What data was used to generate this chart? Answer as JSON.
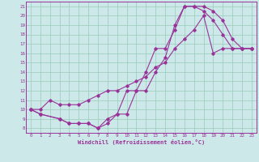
{
  "bg_color": "#cce8e8",
  "line_color": "#993399",
  "grid_color": "#99ccbb",
  "xlabel": "Windchill (Refroidissement éolien,°C)",
  "xlim": [
    -0.5,
    23.5
  ],
  "ylim": [
    7.5,
    21.5
  ],
  "yticks": [
    8,
    9,
    10,
    11,
    12,
    13,
    14,
    15,
    16,
    17,
    18,
    19,
    20,
    21
  ],
  "xticks": [
    0,
    1,
    2,
    3,
    4,
    5,
    6,
    7,
    8,
    9,
    10,
    11,
    12,
    13,
    14,
    15,
    16,
    17,
    18,
    19,
    20,
    21,
    22,
    23
  ],
  "curve1_x": [
    0,
    1,
    3,
    4,
    5,
    6,
    7,
    8,
    9,
    10,
    11,
    12,
    13,
    14,
    15,
    16,
    17,
    18,
    19,
    20,
    21,
    22,
    23
  ],
  "curve1_y": [
    10.0,
    9.5,
    9.0,
    8.5,
    8.5,
    8.5,
    8.0,
    9.0,
    9.5,
    12.0,
    12.0,
    14.0,
    16.5,
    16.5,
    18.5,
    21.0,
    21.0,
    20.5,
    19.5,
    18.0,
    16.5,
    16.5,
    16.5
  ],
  "curve2_x": [
    0,
    1,
    3,
    4,
    5,
    6,
    7,
    8,
    9,
    10,
    11,
    12,
    13,
    14,
    15,
    16,
    17,
    18,
    19,
    20,
    21,
    22,
    23
  ],
  "curve2_y": [
    10.0,
    9.5,
    9.0,
    8.5,
    8.5,
    8.5,
    8.0,
    8.5,
    9.5,
    9.5,
    12.0,
    12.0,
    14.0,
    15.5,
    19.0,
    21.0,
    21.0,
    21.0,
    20.5,
    19.5,
    17.5,
    16.5,
    16.5
  ],
  "curve3_x": [
    0,
    1,
    2,
    3,
    4,
    5,
    6,
    7,
    8,
    9,
    10,
    11,
    12,
    13,
    14,
    15,
    16,
    17,
    18,
    19,
    20,
    21,
    22,
    23
  ],
  "curve3_y": [
    10.0,
    10.0,
    11.0,
    10.5,
    10.5,
    10.5,
    11.0,
    11.5,
    12.0,
    12.0,
    12.5,
    13.0,
    13.5,
    14.5,
    15.0,
    16.5,
    17.5,
    18.5,
    20.0,
    16.0,
    16.5,
    16.5,
    16.5,
    16.5
  ]
}
